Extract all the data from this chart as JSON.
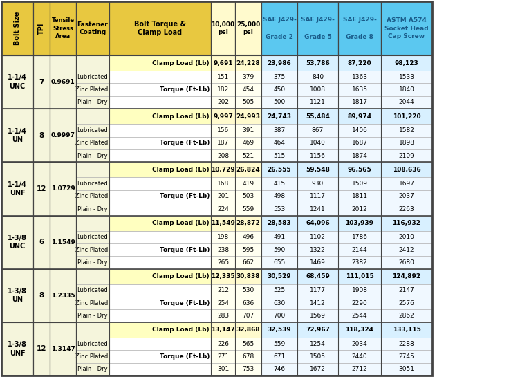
{
  "header_row1": [
    "Bolt Size",
    "TPI",
    "Tensile\nStress\nArea",
    "Fastener\nCoating",
    "Bolt Torque &\nClamp Load",
    "10,000\npsi",
    "25,000\npsi",
    "SAE J429-\n\nGrade 2",
    "SAE J429-\n\nGrade 5",
    "SAE J429-\n\nGrade 8",
    "ASTM A574\nSocket Head\nCap Screw"
  ],
  "col_colors": {
    "fixed": "#F0E68C",
    "psi": "#F0E68C",
    "sae2": "#ADD8E6",
    "sae5": "#ADD8E6",
    "sae8": "#ADD8E6",
    "astm": "#ADD8E6"
  },
  "header_bg": {
    "col0": "#DAA520",
    "col1": "#DAA520",
    "col2": "#DAA520",
    "col3": "#DAA520",
    "col4": "#DAA520",
    "col5": "#F5F5DC",
    "col6": "#F5F5DC",
    "col7": "#87CEEB",
    "col8": "#87CEEB",
    "col9": "#87CEEB",
    "col10": "#87CEEB"
  },
  "sections": [
    {
      "bolt_size": "1-1/4\nUNC",
      "tpi": "7",
      "stress_area": "0.9691",
      "clamp_row": [
        "Clamp Load (Lb)",
        "9,691",
        "24,228",
        "23,986",
        "53,786",
        "87,220",
        "98,123"
      ],
      "torque_rows": [
        [
          "Lubricated",
          "151",
          "379",
          "375",
          "840",
          "1363",
          "1533"
        ],
        [
          "Zinc Plated",
          "182",
          "454",
          "450",
          "1008",
          "1635",
          "1840"
        ],
        [
          "Plain - Dry",
          "202",
          "505",
          "500",
          "1121",
          "1817",
          "2044"
        ]
      ]
    },
    {
      "bolt_size": "1-1/4\nUN",
      "tpi": "8",
      "stress_area": "0.9997",
      "clamp_row": [
        "Clamp Load (Lb)",
        "9,997",
        "24,993",
        "24,743",
        "55,484",
        "89,974",
        "101,220"
      ],
      "torque_rows": [
        [
          "Lubricated",
          "156",
          "391",
          "387",
          "867",
          "1406",
          "1582"
        ],
        [
          "Zinc Plated",
          "187",
          "469",
          "464",
          "1040",
          "1687",
          "1898"
        ],
        [
          "Plain - Dry",
          "208",
          "521",
          "515",
          "1156",
          "1874",
          "2109"
        ]
      ]
    },
    {
      "bolt_size": "1-1/4\nUNF",
      "tpi": "12",
      "stress_area": "1.0729",
      "clamp_row": [
        "Clamp Load (Lb)",
        "10,729",
        "26,824",
        "26,555",
        "59,548",
        "96,565",
        "108,636"
      ],
      "torque_rows": [
        [
          "Lubricated",
          "168",
          "419",
          "415",
          "930",
          "1509",
          "1697"
        ],
        [
          "Zinc Plated",
          "201",
          "503",
          "498",
          "1117",
          "1811",
          "2037"
        ],
        [
          "Plain - Dry",
          "224",
          "559",
          "553",
          "1241",
          "2012",
          "2263"
        ]
      ]
    },
    {
      "bolt_size": "1-3/8\nUNC",
      "tpi": "6",
      "stress_area": "1.1549",
      "clamp_row": [
        "Clamp Load (Lb)",
        "11,549",
        "28,872",
        "28,583",
        "64,096",
        "103,939",
        "116,932"
      ],
      "torque_rows": [
        [
          "Lubricated",
          "198",
          "496",
          "491",
          "1102",
          "1786",
          "2010"
        ],
        [
          "Zinc Plated",
          "238",
          "595",
          "590",
          "1322",
          "2144",
          "2412"
        ],
        [
          "Plain - Dry",
          "265",
          "662",
          "655",
          "1469",
          "2382",
          "2680"
        ]
      ]
    },
    {
      "bolt_size": "1-3/8\nUN",
      "tpi": "8",
      "stress_area": "1.2335",
      "clamp_row": [
        "Clamp Load (Lb)",
        "12,335",
        "30,838",
        "30,529",
        "68,459",
        "111,015",
        "124,892"
      ],
      "torque_rows": [
        [
          "Lubricated",
          "212",
          "530",
          "525",
          "1177",
          "1908",
          "2147"
        ],
        [
          "Zinc Plated",
          "254",
          "636",
          "630",
          "1412",
          "2290",
          "2576"
        ],
        [
          "Plain - Dry",
          "283",
          "707",
          "700",
          "1569",
          "2544",
          "2862"
        ]
      ]
    },
    {
      "bolt_size": "1-3/8\nUNF",
      "tpi": "12",
      "stress_area": "1.3147",
      "clamp_row": [
        "Clamp Load (Lb)",
        "13,147",
        "32,868",
        "32,539",
        "72,967",
        "118,324",
        "133,115"
      ],
      "torque_rows": [
        [
          "Lubricated",
          "226",
          "565",
          "559",
          "1254",
          "2034",
          "2288"
        ],
        [
          "Zinc Plated",
          "271",
          "678",
          "671",
          "1505",
          "2440",
          "2745"
        ],
        [
          "Plain - Dry",
          "301",
          "753",
          "746",
          "1672",
          "2712",
          "3051"
        ]
      ]
    }
  ],
  "colors": {
    "header_yellow": "#D4A017",
    "header_yellow_light": "#F5E642",
    "header_blue": "#4FC3E8",
    "header_blue_text": "#1A6EA8",
    "clamp_row_bg": "#F5F5F5",
    "torque_row_bg": "#FFFFFF",
    "section_divider": "#555555",
    "inner_divider": "#AAAAAA",
    "border_dark": "#333333",
    "yellow_col_bg": "#F5F5DC",
    "blue_col_bg": "#D0ECFF",
    "clamp_bold_yellow": "#F5E642",
    "clamp_text_bold_color": "#000000",
    "torque_label_bg": "#F5F5DC",
    "torque_label_right_align": true
  }
}
